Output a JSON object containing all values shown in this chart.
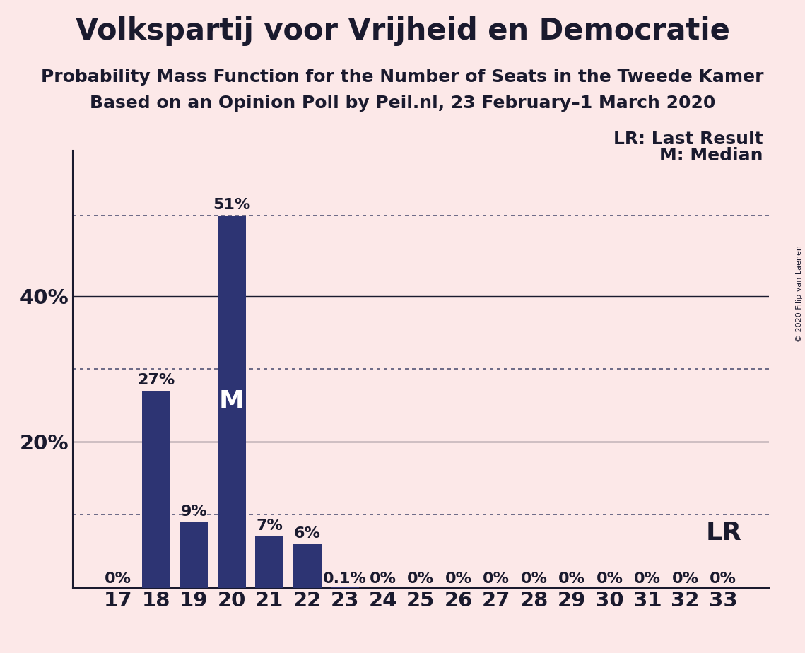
{
  "title": "Volkspartij voor Vrijheid en Democratie",
  "subtitle1": "Probability Mass Function for the Number of Seats in the Tweede Kamer",
  "subtitle2": "Based on an Opinion Poll by Peil.nl, 23 February–1 March 2020",
  "copyright": "© 2020 Filip van Laenen",
  "categories": [
    17,
    18,
    19,
    20,
    21,
    22,
    23,
    24,
    25,
    26,
    27,
    28,
    29,
    30,
    31,
    32,
    33
  ],
  "values": [
    0.0,
    0.27,
    0.09,
    0.51,
    0.07,
    0.06,
    0.001,
    0.0,
    0.0,
    0.0,
    0.0,
    0.0,
    0.0,
    0.0,
    0.0,
    0.0,
    0.0
  ],
  "bar_labels": [
    "0%",
    "27%",
    "9%",
    "51%",
    "7%",
    "6%",
    "0.1%",
    "0%",
    "0%",
    "0%",
    "0%",
    "0%",
    "0%",
    "0%",
    "0%",
    "0%",
    "0%"
  ],
  "bar_color": "#2d3473",
  "background_color": "#fce8e8",
  "text_color": "#1a1a2e",
  "lr_value": 0.1,
  "median_value": 0.51,
  "median_seat": 20,
  "dotted_line_1": 0.51,
  "dotted_line_2": 0.3,
  "dotted_line_3": 0.1,
  "solid_line_1": 0.4,
  "solid_line_2": 0.2,
  "yticks": [
    0.2,
    0.4
  ],
  "ytick_labels": [
    "20%",
    "40%"
  ],
  "line_color": "#1a1a2e",
  "dotted_color": "#555577",
  "ylim": [
    0,
    0.6
  ],
  "title_fontsize": 30,
  "subtitle_fontsize": 18,
  "label_fontsize": 16,
  "axis_fontsize": 21,
  "annot_fontsize": 22
}
